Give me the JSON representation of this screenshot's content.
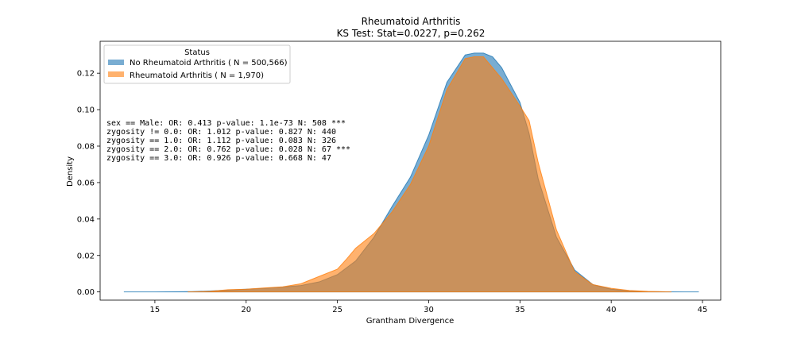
{
  "chart_data": {
    "type": "area",
    "title": "Rheumatoid Arthritis",
    "subtitle": "KS Test: Stat=0.0227, p=0.262",
    "xlabel": "Grantham Divergence",
    "ylabel": "Density",
    "xlim": [
      12,
      46
    ],
    "ylim": [
      -0.0045,
      0.1375
    ],
    "xticks": [
      15,
      20,
      25,
      30,
      35,
      40,
      45
    ],
    "yticks": [
      0.0,
      0.02,
      0.04,
      0.06,
      0.08,
      0.1,
      0.12
    ],
    "ytick_labels": [
      "0.00",
      "0.02",
      "0.04",
      "0.06",
      "0.08",
      "0.10",
      "0.12"
    ],
    "grid": false,
    "legend": {
      "title": "Status",
      "placement": "top-left"
    },
    "series": [
      {
        "name": "No Rheumatoid Arthritis ( N = 500,566)",
        "color": "#1f77b4",
        "alpha": 0.6,
        "x": [
          13.3,
          15,
          17,
          18,
          19,
          20,
          21,
          22,
          23,
          24,
          25,
          26,
          27,
          28,
          29,
          30,
          31,
          32,
          32.5,
          33,
          33.5,
          34,
          35,
          35.5,
          36,
          37,
          38,
          39,
          40,
          41,
          42,
          43,
          44,
          44.8
        ],
        "y": [
          0.0,
          0.0,
          0.0002,
          0.0005,
          0.001,
          0.0015,
          0.002,
          0.0027,
          0.0035,
          0.0055,
          0.0095,
          0.017,
          0.03,
          0.047,
          0.063,
          0.086,
          0.115,
          0.13,
          0.131,
          0.131,
          0.129,
          0.123,
          0.104,
          0.087,
          0.062,
          0.03,
          0.012,
          0.004,
          0.0015,
          0.0006,
          0.0002,
          0.0001,
          0.0,
          0.0
        ]
      },
      {
        "name": "Rheumatoid Arthritis ( N = 1,970)",
        "color": "#ff7f0e",
        "alpha": 0.6,
        "x": [
          16.8,
          18,
          19,
          20,
          21,
          22,
          23,
          24,
          25,
          25.5,
          26,
          27,
          28,
          29,
          30,
          31,
          32,
          32.5,
          33,
          34,
          35,
          35.5,
          36,
          37,
          38,
          39,
          40,
          41,
          42,
          43.3
        ],
        "y": [
          0.0,
          0.0003,
          0.0012,
          0.0015,
          0.0022,
          0.0028,
          0.0045,
          0.0085,
          0.0125,
          0.018,
          0.024,
          0.032,
          0.044,
          0.059,
          0.08,
          0.111,
          0.128,
          0.129,
          0.129,
          0.117,
          0.102,
          0.094,
          0.071,
          0.034,
          0.011,
          0.004,
          0.002,
          0.0008,
          0.0003,
          0.0
        ]
      }
    ],
    "annotations": [
      "sex == Male: OR: 0.413 p-value: 1.1e-73 N: 508 ***",
      "zygosity != 0.0: OR: 1.012 p-value: 0.827 N: 440",
      "zygosity == 1.0: OR: 1.112 p-value: 0.083 N: 326",
      "zygosity == 2.0: OR: 0.762 p-value: 0.028 N: 67 ***",
      "zygosity == 3.0: OR: 0.926 p-value: 0.668 N: 47"
    ]
  }
}
